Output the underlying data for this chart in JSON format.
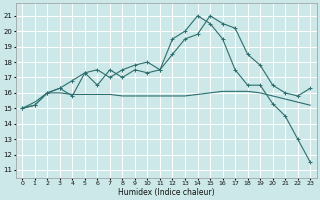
{
  "xlabel": "Humidex (Indice chaleur)",
  "bg_color": "#cce8e8",
  "grid_color": "#ffffff",
  "line_color": "#2d6e6e",
  "xlim": [
    -0.5,
    23.5
  ],
  "ylim": [
    10.5,
    21.8
  ],
  "yticks": [
    11,
    12,
    13,
    14,
    15,
    16,
    17,
    18,
    19,
    20,
    21
  ],
  "xticks": [
    0,
    1,
    2,
    3,
    4,
    5,
    6,
    7,
    8,
    9,
    10,
    11,
    12,
    13,
    14,
    15,
    16,
    17,
    18,
    19,
    20,
    21,
    22,
    23
  ],
  "x": [
    0,
    1,
    2,
    3,
    4,
    5,
    6,
    7,
    8,
    9,
    10,
    11,
    12,
    13,
    14,
    15,
    16,
    17,
    18,
    19,
    20,
    21,
    22,
    23
  ],
  "y_main": [
    15.0,
    15.2,
    16.0,
    16.3,
    15.8,
    17.3,
    16.5,
    17.5,
    17.0,
    17.5,
    17.3,
    17.5,
    18.5,
    19.5,
    19.8,
    21.0,
    20.5,
    20.2,
    18.5,
    17.8,
    16.5,
    16.0,
    15.8,
    16.3
  ],
  "y_smooth": [
    15.0,
    15.4,
    16.0,
    16.0,
    15.9,
    15.9,
    15.9,
    15.9,
    15.8,
    15.8,
    15.8,
    15.8,
    15.8,
    15.8,
    15.9,
    16.0,
    16.1,
    16.1,
    16.1,
    16.0,
    15.8,
    15.6,
    15.4,
    15.2
  ],
  "y_drop": [
    15.0,
    15.2,
    16.0,
    16.3,
    16.8,
    17.3,
    17.5,
    17.0,
    17.5,
    17.8,
    18.0,
    17.5,
    19.5,
    20.0,
    21.0,
    20.5,
    19.5,
    17.5,
    16.5,
    16.5,
    15.3,
    14.5,
    13.0,
    11.5
  ]
}
